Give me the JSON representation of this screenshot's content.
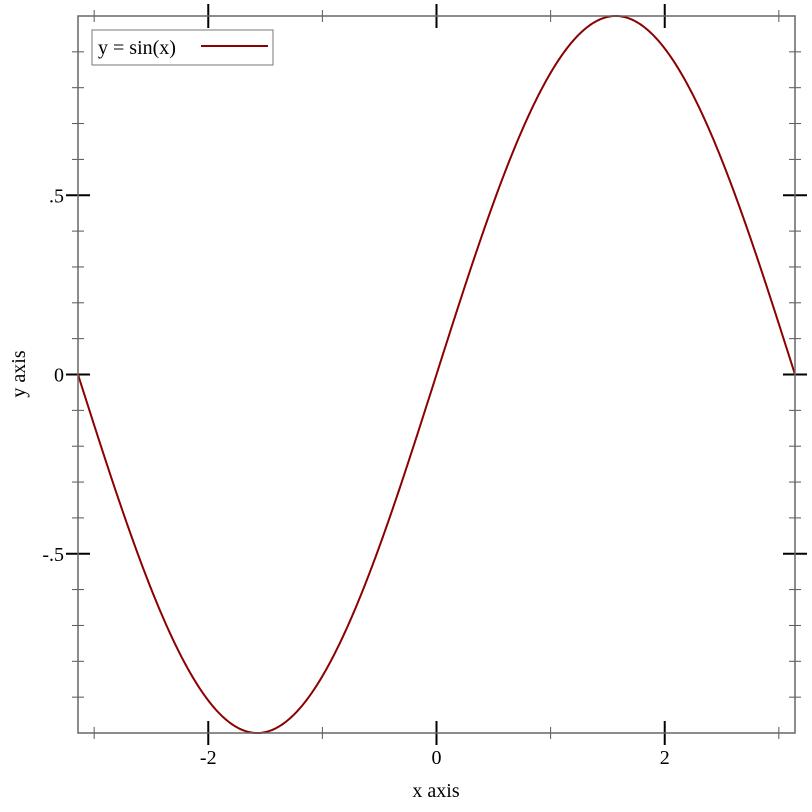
{
  "chart_data": {
    "type": "line",
    "title": "",
    "xlabel": "x axis",
    "ylabel": "y axis",
    "xlim": [
      -3.14159,
      3.14159
    ],
    "ylim": [
      -1,
      1
    ],
    "x_major_ticks": [
      -2,
      0,
      2
    ],
    "x_tick_labels": [
      "-2",
      "0",
      "2"
    ],
    "x_minor_ticks": [
      -3,
      -1,
      1,
      3
    ],
    "y_major_ticks": [
      -0.5,
      0,
      0.5
    ],
    "y_tick_labels": [
      "-.5",
      "0",
      ".5"
    ],
    "y_minor_step": 0.1,
    "grid": false,
    "legend_placement": "top-left",
    "series": [
      {
        "name": "y = sin(x)",
        "function": "sin(x)",
        "color": "#8b0000"
      }
    ]
  }
}
